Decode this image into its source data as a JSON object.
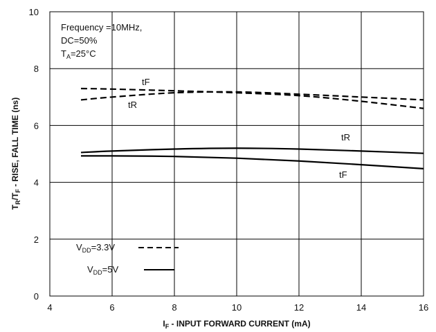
{
  "chart_data": {
    "type": "line",
    "xlabel_main": "I",
    "xlabel_sub": "F",
    "xlabel_rest": " - INPUT FORWARD CURRENT (mA)",
    "ylabel_main1": "T",
    "ylabel_sub1": "R",
    "ylabel_mid": "/T",
    "ylabel_sub2": "F",
    "ylabel_rest": " - RISE, FALL TIME (ns)",
    "xlim": [
      4,
      16
    ],
    "ylim": [
      0,
      10
    ],
    "xticks": [
      "4",
      "6",
      "8",
      "10",
      "12",
      "14",
      "16"
    ],
    "yticks": [
      "0",
      "2",
      "4",
      "6",
      "8",
      "10"
    ],
    "grid": true,
    "annotation": {
      "line1": "Frequency =10MHz,",
      "line2": "DC=50%",
      "line3_main": "T",
      "line3_sub": "A",
      "line3_rest": "=25°C"
    },
    "legend": {
      "placement": "bottom-left",
      "entries": [
        {
          "main": "V",
          "sub": "DD",
          "rest": "=3.3V",
          "style": "dashed"
        },
        {
          "main": "V",
          "sub": "DD",
          "rest": "=5V",
          "style": "solid"
        }
      ]
    },
    "series": [
      {
        "label": "tF",
        "style": "dashed",
        "x": [
          5,
          6,
          8,
          10,
          12,
          14,
          16
        ],
        "y": [
          7.3,
          7.28,
          7.22,
          7.15,
          7.05,
          6.85,
          6.6
        ]
      },
      {
        "label": "tR",
        "style": "dashed",
        "x": [
          5,
          6,
          8,
          10,
          12,
          14,
          16
        ],
        "y": [
          6.9,
          7.0,
          7.15,
          7.18,
          7.1,
          7.0,
          6.9
        ]
      },
      {
        "label": "tR",
        "style": "solid",
        "x": [
          5,
          6,
          8,
          10,
          12,
          14,
          16
        ],
        "y": [
          5.05,
          5.1,
          5.17,
          5.2,
          5.17,
          5.1,
          5.02
        ]
      },
      {
        "label": "tF",
        "style": "solid",
        "x": [
          5,
          6,
          8,
          10,
          12,
          14,
          16
        ],
        "y": [
          4.93,
          4.93,
          4.91,
          4.85,
          4.75,
          4.62,
          4.48
        ]
      }
    ]
  }
}
